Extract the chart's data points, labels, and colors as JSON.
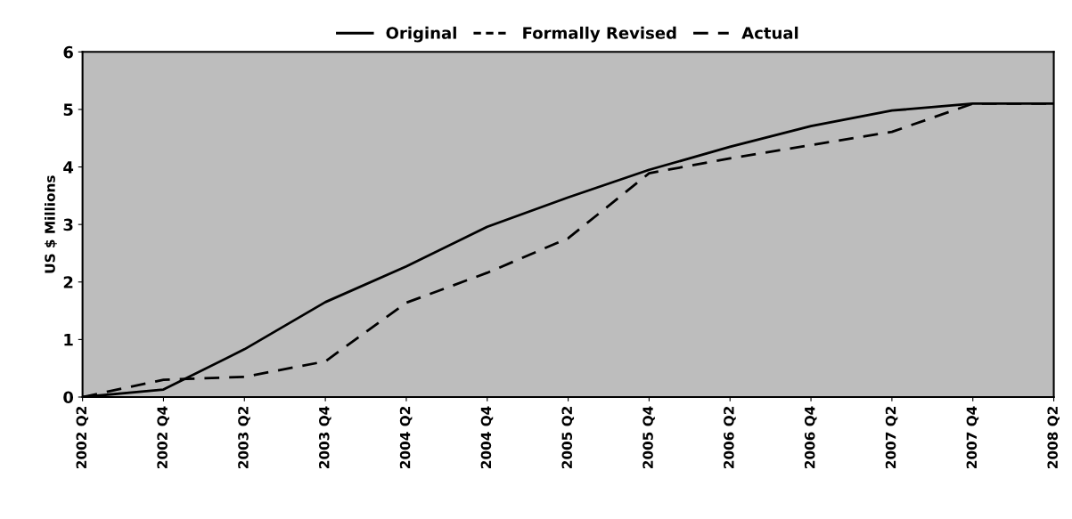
{
  "chart_data": {
    "type": "line",
    "ylabel": "US $ Millions",
    "categories": [
      "2002 Q2",
      "2002 Q4",
      "2003 Q2",
      "2003 Q4",
      "2004 Q2",
      "2004 Q4",
      "2005 Q2",
      "2005 Q4",
      "2006 Q2",
      "2006 Q4",
      "2007 Q2",
      "2007 Q4",
      "2008 Q2"
    ],
    "series": [
      {
        "name": "Original",
        "color": "#000000",
        "line_style": "solid",
        "values": [
          0,
          0.13,
          0.83,
          1.65,
          2.27,
          2.96,
          3.47,
          3.95,
          4.35,
          4.71,
          4.98,
          5.1,
          5.1
        ]
      },
      {
        "name": "Formally Revised",
        "color": "#000000",
        "line_style": "dotted",
        "values": [
          null,
          null,
          null,
          null,
          null,
          null,
          null,
          null,
          null,
          null,
          null,
          null,
          null
        ]
      },
      {
        "name": "Actual",
        "color": "#000000",
        "line_style": "dashed",
        "values": [
          0,
          0.3,
          0.35,
          0.62,
          1.64,
          2.16,
          2.76,
          3.89,
          4.15,
          4.38,
          4.61,
          5.1,
          5.1
        ]
      }
    ],
    "ylim": [
      0,
      6
    ],
    "yticks": [
      0,
      1,
      2,
      3,
      4,
      5,
      6
    ],
    "grid": false,
    "legend": "top",
    "marker": "none"
  }
}
